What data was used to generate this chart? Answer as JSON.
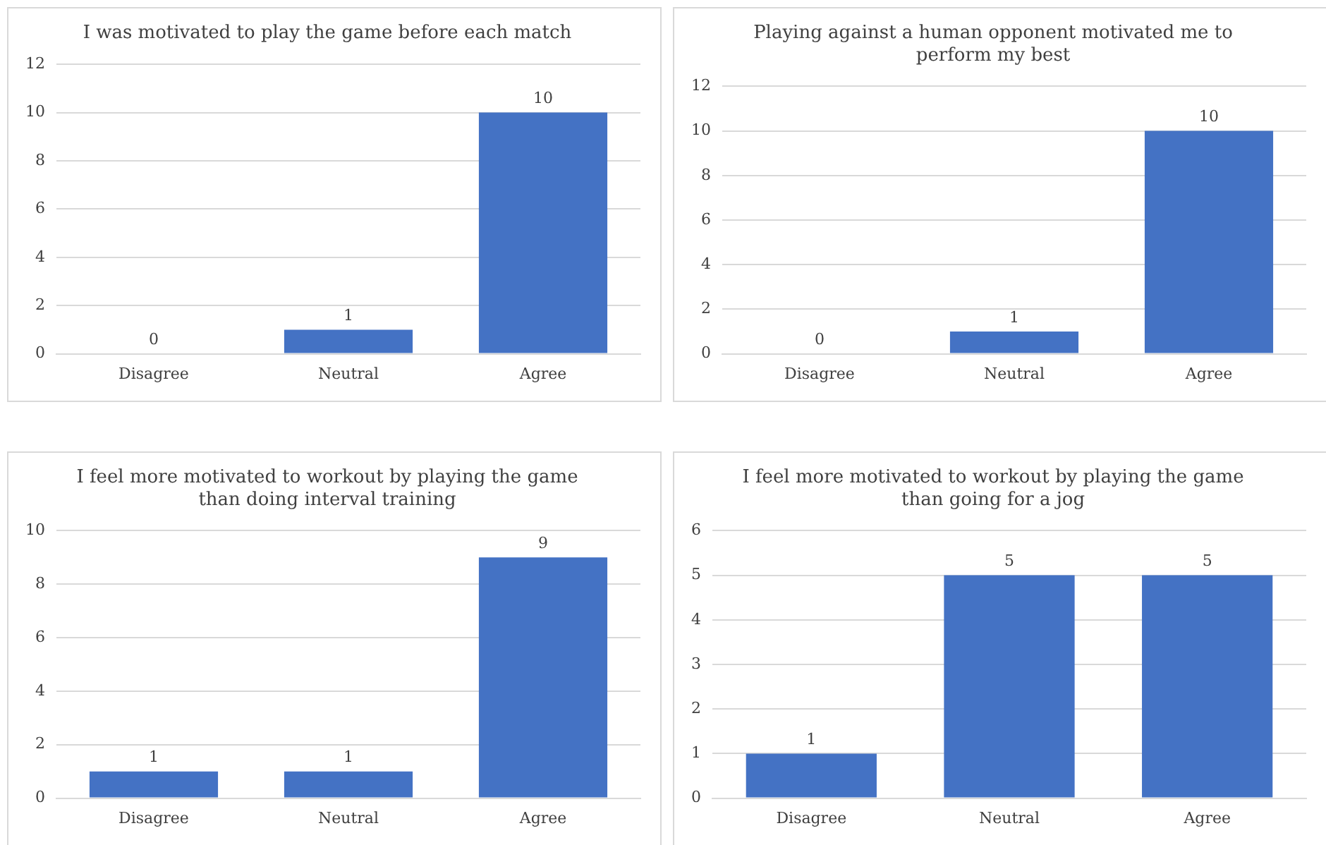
{
  "chart_data": [
    {
      "type": "bar",
      "title": "I was motivated to play the game before each match",
      "categories": [
        "Disagree",
        "Neutral",
        "Agree"
      ],
      "values": [
        0,
        1,
        10
      ],
      "color": "#4472c4",
      "ylim": [
        0,
        12
      ],
      "yticks": [
        0,
        2,
        4,
        6,
        8,
        10,
        12
      ],
      "grid": "y",
      "data_labels": true
    },
    {
      "type": "bar",
      "title": "Playing against a human opponent motivated me to perform my best",
      "categories": [
        "Disagree",
        "Neutral",
        "Agree"
      ],
      "values": [
        0,
        1,
        10
      ],
      "color": "#4472c4",
      "ylim": [
        0,
        12
      ],
      "yticks": [
        0,
        2,
        4,
        6,
        8,
        10,
        12
      ],
      "grid": "y",
      "data_labels": true
    },
    {
      "type": "bar",
      "title": "I feel more motivated to workout by playing the game than doing interval training",
      "categories": [
        "Disagree",
        "Neutral",
        "Agree"
      ],
      "values": [
        1,
        1,
        9
      ],
      "color": "#4472c4",
      "ylim": [
        0,
        10
      ],
      "yticks": [
        0,
        2,
        4,
        6,
        8,
        10
      ],
      "grid": "y",
      "data_labels": true
    },
    {
      "type": "bar",
      "title": "I feel more motivated to workout by playing the game than going for a jog",
      "categories": [
        "Disagree",
        "Neutral",
        "Agree"
      ],
      "values": [
        1,
        5,
        5
      ],
      "color": "#4472c4",
      "ylim": [
        0,
        6
      ],
      "yticks": [
        0,
        1,
        2,
        3,
        4,
        5,
        6
      ],
      "grid": "y",
      "data_labels": true
    }
  ]
}
